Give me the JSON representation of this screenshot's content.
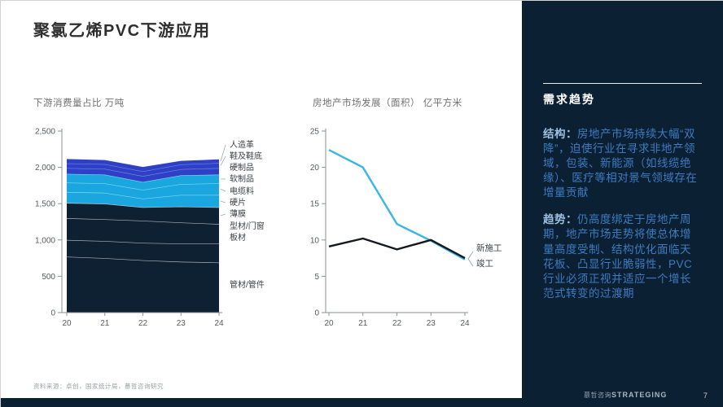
{
  "slide": {
    "title": "聚氯乙烯PVC下游应用",
    "footer_source": "资料来源：卓创，国家统计局，慕哲咨询研究",
    "brand_cn": "慕哲咨询",
    "brand_en": "STRATEGING",
    "page_number": "7"
  },
  "sidebar": {
    "heading": "需求趋势",
    "paragraphs": [
      {
        "lead": "结构：",
        "text": "房地产市场持续大幅“双降”，迫使行业在寻求非地产领域，包装、新能源（如线缆绝缘）、医疗等相对景气领域存在增量贡献"
      },
      {
        "lead": "趋势：",
        "text": "仍高度绑定于房地产周期，地产市场走势将使总体增量高度受制、结构优化面临天花板、凸显行业脆弱性，PVC行业必须正视并适应一个增长范式转变的过渡期"
      }
    ],
    "bg_color": "#0b2032",
    "text_color": "#3d7cc2",
    "lead_color": "#9dc0e2"
  },
  "chart_data": [
    {
      "type": "area",
      "title": "下游消费量占比 万吨",
      "categories": [
        "20",
        "21",
        "22",
        "23",
        "24"
      ],
      "ylim": [
        0,
        2500
      ],
      "yticks": [
        0,
        500,
        1000,
        1500,
        2000,
        2500
      ],
      "ytick_labels": [
        "0",
        "500",
        "1,000",
        "1,500",
        "2,000",
        "2,500"
      ],
      "grid": false,
      "legend_position": "right-labels",
      "axis_color": "#8a9096",
      "tick_label_color": "#55595e",
      "label_color": "#3c4046",
      "leader_color": "#a2a8ad",
      "series": [
        {
          "name": "管材/管件",
          "values": [
            770,
            750,
            720,
            700,
            690
          ],
          "fill": "#0d2133",
          "line": "#aab3bb",
          "label_y": 212,
          "leader": false
        },
        {
          "name": "板材",
          "values": [
            230,
            235,
            240,
            250,
            260
          ],
          "fill": "#0d2133",
          "line": "#aab3bb",
          "label_y": 154,
          "leader": false
        },
        {
          "name": "型材/门窗",
          "values": [
            300,
            300,
            305,
            290,
            270
          ],
          "fill": "#0d2133",
          "line": "#aab3bb",
          "label_y": 140,
          "leader": false
        },
        {
          "name": "薄膜",
          "values": [
            210,
            215,
            185,
            220,
            230
          ],
          "fill": "#0d2133",
          "line": "#c2cad1",
          "label_y": 125,
          "leader": true
        },
        {
          "name": "硬片",
          "values": [
            150,
            150,
            120,
            160,
            170
          ],
          "fill": "#1aa7e0",
          "line": "#83d6f1",
          "label_y": 111,
          "leader": true
        },
        {
          "name": "电缆料",
          "values": [
            130,
            130,
            120,
            150,
            160
          ],
          "fill": "#1aa7e0",
          "line": "#83d6f1",
          "label_y": 97,
          "leader": true
        },
        {
          "name": "软制品",
          "values": [
            120,
            120,
            110,
            120,
            120
          ],
          "fill": "#1aa7e0",
          "line": "#86d8f2",
          "label_y": 82,
          "leader": true
        },
        {
          "name": "硬制品",
          "values": [
            80,
            80,
            80,
            85,
            90
          ],
          "fill": "#2e41c6",
          "line": "#7583e8",
          "label_y": 68,
          "leader": false
        },
        {
          "name": "鞋及鞋底",
          "values": [
            65,
            65,
            65,
            65,
            70
          ],
          "fill": "#2e41c6",
          "line": "#7583e8",
          "label_y": 54,
          "leader": true
        },
        {
          "name": "人造革",
          "values": [
            60,
            55,
            60,
            50,
            50
          ],
          "fill": "#2e41c6",
          "line": null,
          "label_y": 40,
          "leader": true
        }
      ]
    },
    {
      "type": "line",
      "title": "房地产市场发展（面积） 亿平方米",
      "categories": [
        "20",
        "21",
        "22",
        "23",
        "24"
      ],
      "ylim": [
        0,
        25
      ],
      "yticks": [
        0,
        5,
        10,
        15,
        20,
        25
      ],
      "ytick_labels": [
        "0",
        "5",
        "10",
        "15",
        "20",
        "25"
      ],
      "grid": false,
      "legend_position": "right-labels",
      "axis_color": "#8a9096",
      "tick_label_color": "#55595e",
      "label_color": "#3c4046",
      "leader_color": "#9aa2a8",
      "series": [
        {
          "name": "新施工",
          "color": "#38b6e6",
          "values": [
            22.4,
            20.0,
            12.2,
            9.9,
            7.3
          ],
          "label_y": 167
        },
        {
          "name": "竣工",
          "color": "#15191d",
          "values": [
            9.1,
            10.2,
            8.7,
            10.0,
            7.5
          ],
          "label_y": 186
        }
      ]
    }
  ]
}
